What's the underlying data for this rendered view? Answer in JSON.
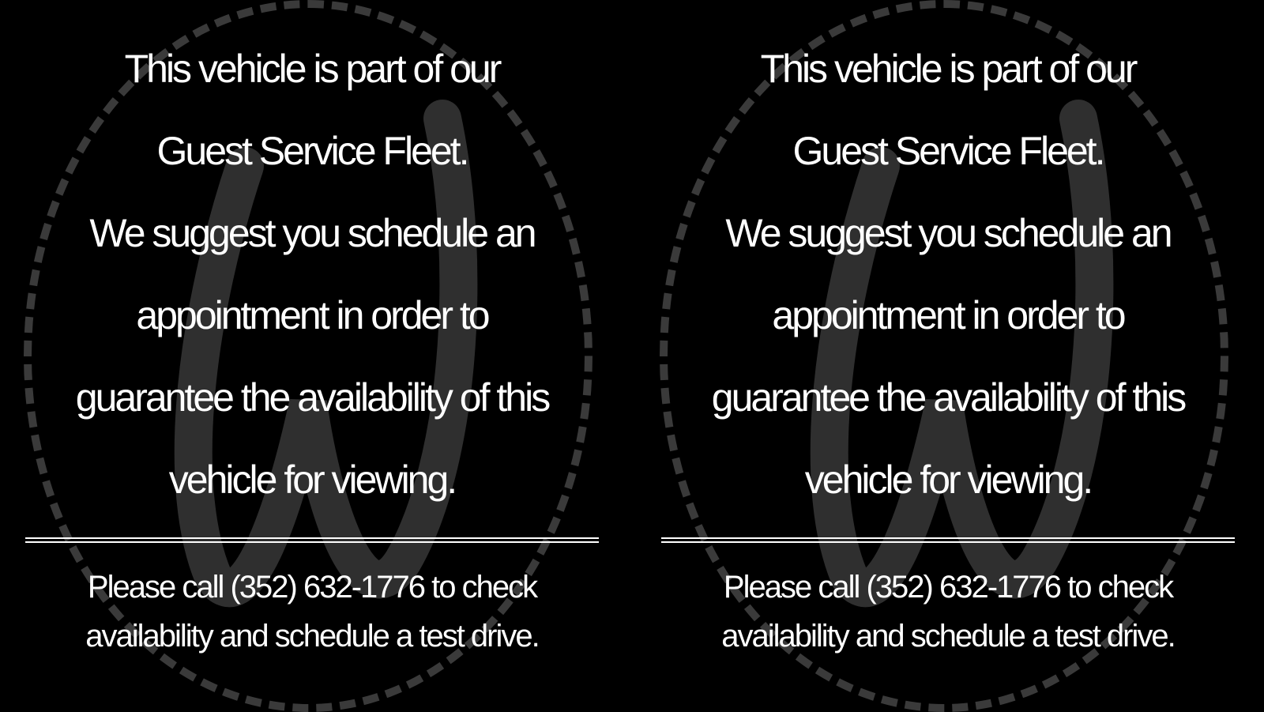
{
  "signs": [
    {
      "logo_letter": "W",
      "lines": [
        "This vehicle is part of our",
        "Guest Service Fleet.",
        "We suggest you schedule an",
        "appointment in order to",
        "guarantee the availability of this",
        "vehicle for viewing."
      ],
      "footer": [
        "Please call (352) 632-1776 to check",
        "availability and schedule a test drive."
      ]
    },
    {
      "logo_letter": "W",
      "lines": [
        "This vehicle is part of our",
        "Guest Service Fleet.",
        "We suggest you schedule an",
        "appointment in order to",
        "guarantee the availability of this",
        "vehicle for viewing."
      ],
      "footer": [
        "Please call (352) 632-1776 to check",
        "availability and schedule a test drive."
      ]
    }
  ]
}
